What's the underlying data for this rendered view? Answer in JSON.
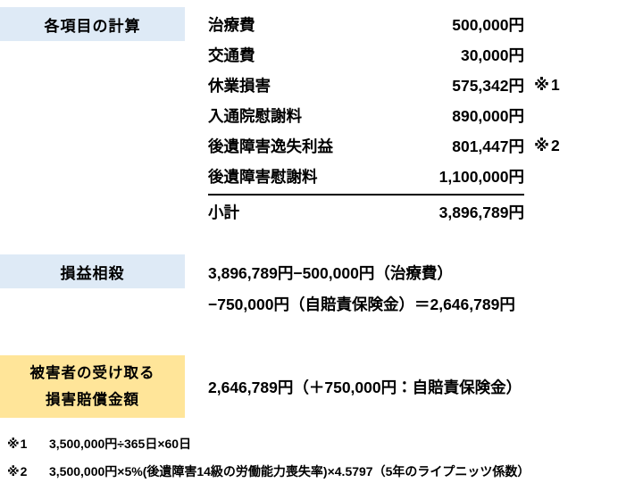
{
  "colors": {
    "label_blue": "#DEEAF6",
    "label_yellow": "#FFE599",
    "text": "#000000",
    "background": "#FFFFFF"
  },
  "sections": {
    "items": {
      "label": "各項目の計算",
      "rows": [
        {
          "name": "治療費",
          "amount": "500,000円",
          "note": ""
        },
        {
          "name": "交通費",
          "amount": "30,000円",
          "note": ""
        },
        {
          "name": "休業損害",
          "amount": "575,342円",
          "note": "※1"
        },
        {
          "name": "入通院慰謝料",
          "amount": "890,000円",
          "note": ""
        },
        {
          "name": "後遺障害逸失利益",
          "amount": "801,447円",
          "note": "※2"
        },
        {
          "name": "後遺障害慰謝料",
          "amount": "1,100,000円",
          "note": ""
        }
      ],
      "subtotal": {
        "name": "小計",
        "amount": "3,896,789円"
      }
    },
    "offset": {
      "label": "損益相殺",
      "line1": "3,896,789円−500,000円（治療費）",
      "line2": "−750,000円（自賠責保険金）＝2,646,789円"
    },
    "payout": {
      "label_line1": "被害者の受け取る",
      "label_line2": "損害賠償金額",
      "value": "2,646,789円（＋750,000円：自賠責保険金）"
    },
    "footnotes": [
      {
        "marker": "※1",
        "text": "3,500,000円÷365日×60日"
      },
      {
        "marker": "※2",
        "text": "3,500,000円×5%(後遺障害14級の労働能力喪失率)×4.5797（5年のライプニッツ係数）"
      }
    ]
  }
}
